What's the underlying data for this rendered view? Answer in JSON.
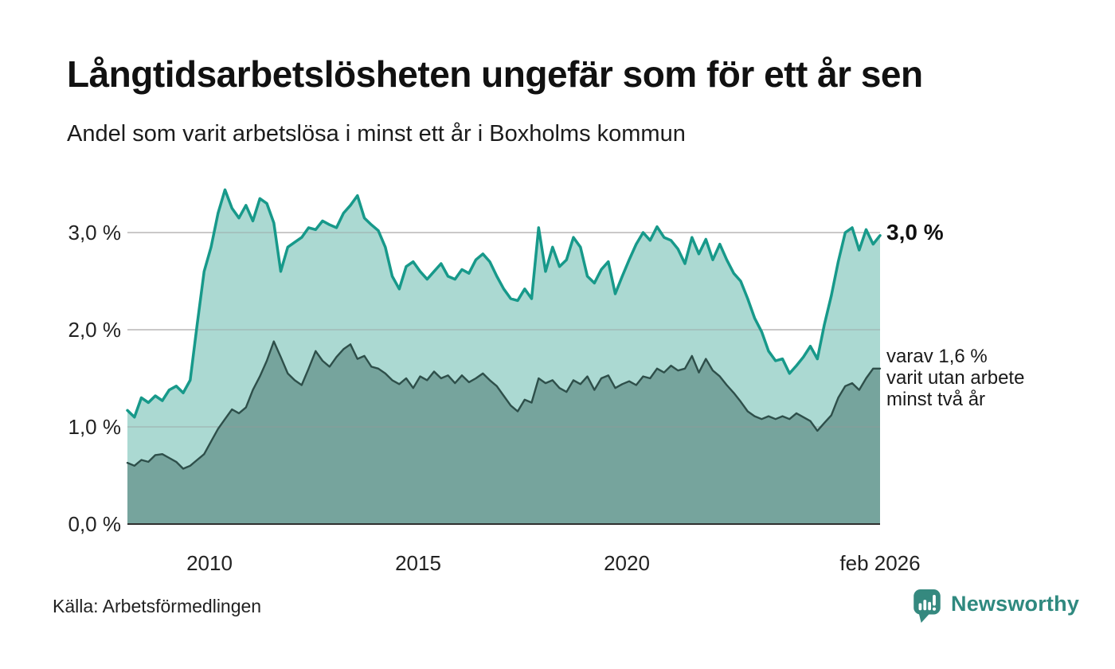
{
  "header": {
    "title": "Långtidsarbetslösheten ungefär som för ett år sen",
    "subtitle": "Andel som varit arbetslösa i minst ett år i Boxholms kommun"
  },
  "chart_data": {
    "type": "area",
    "title": "Andel som varit arbetslösa i minst ett år i Boxholms kommun",
    "xlabel": "",
    "ylabel": "",
    "unit": "%",
    "x_start": "feb 2008",
    "x_end": "feb 2026",
    "step_months": 2,
    "ylim": [
      0,
      3.6
    ],
    "grid": "horizontal",
    "grid_color": "#d9d6d6",
    "yticks": [
      {
        "value": 3,
        "label": "3,0 %"
      },
      {
        "value": 2,
        "label": "2,0 %"
      },
      {
        "value": 1,
        "label": "1,0 %"
      },
      {
        "value": 0,
        "label": "0,0 %"
      }
    ],
    "xticks": [
      "2010",
      "2015",
      "2020",
      "feb 2026"
    ],
    "series": [
      {
        "name": "Andel som varit arbetslösa i minst ett år",
        "line_color": "#17998a",
        "fill_color": "#abd9d2",
        "last_value_label": "3,0 %",
        "values": [
          1.17,
          1.1,
          1.3,
          1.25,
          1.32,
          1.27,
          1.38,
          1.42,
          1.35,
          1.48,
          2.05,
          2.6,
          2.85,
          3.2,
          3.44,
          3.25,
          3.15,
          3.28,
          3.12,
          3.35,
          3.3,
          3.1,
          2.6,
          2.85,
          2.9,
          2.95,
          3.05,
          3.03,
          3.12,
          3.08,
          3.05,
          3.2,
          3.28,
          3.38,
          3.15,
          3.08,
          3.02,
          2.85,
          2.55,
          2.42,
          2.65,
          2.7,
          2.6,
          2.52,
          2.6,
          2.68,
          2.55,
          2.52,
          2.62,
          2.58,
          2.72,
          2.78,
          2.7,
          2.55,
          2.42,
          2.32,
          2.3,
          2.42,
          2.32,
          3.05,
          2.6,
          2.85,
          2.65,
          2.72,
          2.95,
          2.85,
          2.55,
          2.48,
          2.62,
          2.7,
          2.37,
          2.55,
          2.72,
          2.88,
          3.0,
          2.92,
          3.06,
          2.95,
          2.92,
          2.83,
          2.68,
          2.95,
          2.78,
          2.93,
          2.72,
          2.88,
          2.72,
          2.58,
          2.5,
          2.32,
          2.12,
          1.98,
          1.78,
          1.68,
          1.7,
          1.55,
          1.63,
          1.72,
          1.83,
          1.7,
          2.05,
          2.35,
          2.7,
          3.0,
          3.05,
          2.82,
          3.03,
          2.88,
          2.97
        ]
      },
      {
        "name": "Andel som varit utan arbete minst två år",
        "line_color": "#2e4f4a",
        "fill_color": "#76a49d",
        "last_value_label": "1,6 %",
        "values": [
          0.63,
          0.6,
          0.66,
          0.64,
          0.71,
          0.72,
          0.68,
          0.64,
          0.57,
          0.6,
          0.66,
          0.72,
          0.85,
          0.98,
          1.08,
          1.18,
          1.14,
          1.2,
          1.38,
          1.52,
          1.68,
          1.88,
          1.72,
          1.55,
          1.48,
          1.43,
          1.6,
          1.78,
          1.68,
          1.62,
          1.72,
          1.8,
          1.85,
          1.7,
          1.73,
          1.62,
          1.6,
          1.55,
          1.48,
          1.44,
          1.5,
          1.4,
          1.52,
          1.48,
          1.57,
          1.5,
          1.53,
          1.45,
          1.53,
          1.46,
          1.5,
          1.55,
          1.48,
          1.42,
          1.32,
          1.22,
          1.16,
          1.28,
          1.25,
          1.5,
          1.45,
          1.48,
          1.4,
          1.36,
          1.48,
          1.44,
          1.52,
          1.38,
          1.5,
          1.53,
          1.4,
          1.44,
          1.47,
          1.43,
          1.52,
          1.5,
          1.6,
          1.56,
          1.63,
          1.58,
          1.6,
          1.73,
          1.56,
          1.7,
          1.58,
          1.52,
          1.43,
          1.35,
          1.26,
          1.16,
          1.11,
          1.08,
          1.11,
          1.08,
          1.11,
          1.08,
          1.14,
          1.1,
          1.06,
          0.96,
          1.04,
          1.12,
          1.3,
          1.42,
          1.45,
          1.38,
          1.5,
          1.6,
          1.6
        ]
      }
    ],
    "annotations": {
      "total": "3,0 %",
      "secondary_lines": [
        "varav 1,6 %",
        "varit utan arbete",
        "minst två år"
      ]
    }
  },
  "footer": {
    "source": "Källa: Arbetsförmedlingen",
    "brand": "Newsworthy",
    "brand_color": "#2f897f"
  }
}
